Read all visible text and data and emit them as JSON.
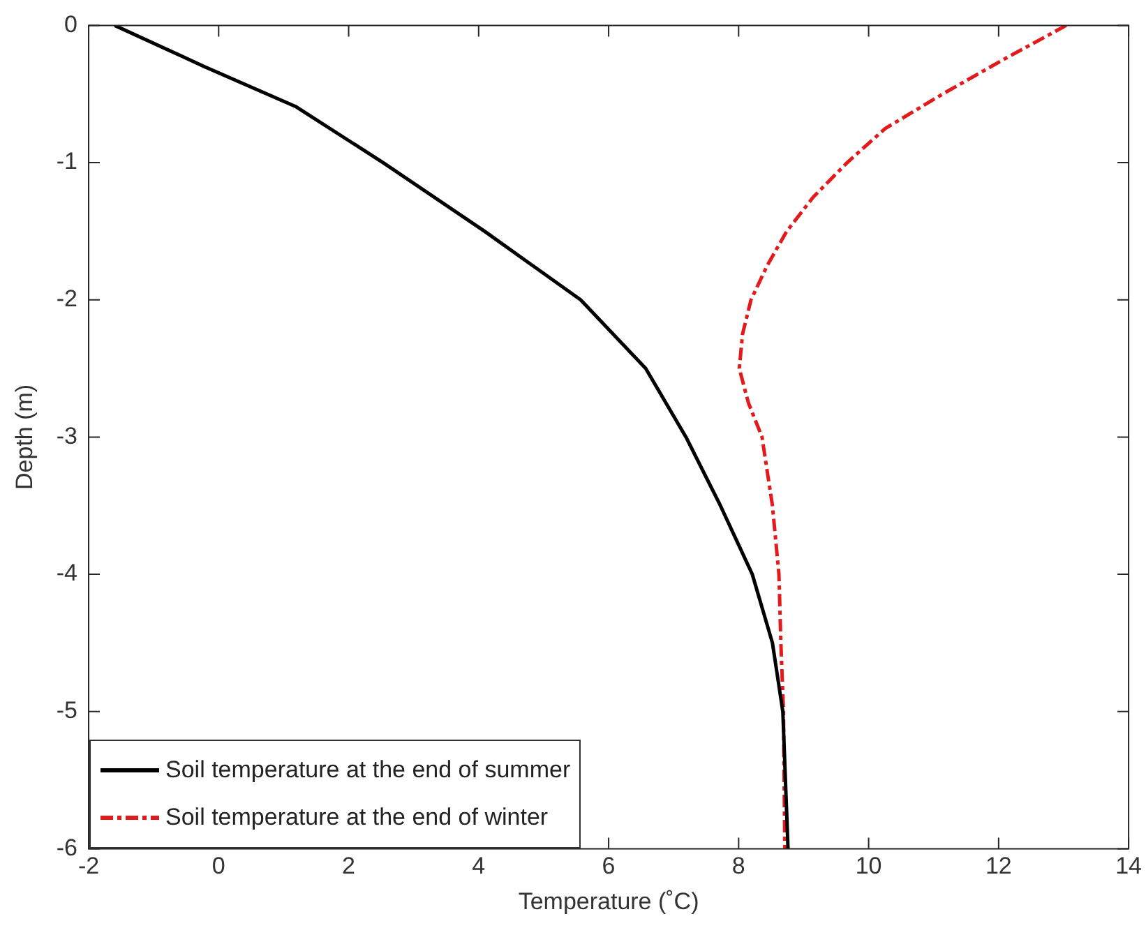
{
  "chart_data": {
    "type": "line",
    "xlabel": "Temperature (˚C)",
    "ylabel": "Depth (m)",
    "xlim": [
      -2,
      14
    ],
    "xticks": [
      -2,
      0,
      2,
      4,
      6,
      8,
      10,
      12,
      14
    ],
    "ylim": [
      -6,
      0
    ],
    "yticks": [
      -6,
      -5,
      -4,
      -3,
      -2,
      -1,
      0
    ],
    "grid": false,
    "legend": "bottom left",
    "marker": "none",
    "series": [
      {
        "name": "Soil temperature at the end of summer",
        "color": "#000000",
        "line_style": "solid",
        "x": [
          -1.6,
          -0.22,
          1.18,
          2.53,
          4.09,
          5.57,
          6.57,
          7.19,
          7.72,
          8.21,
          8.52,
          8.68,
          8.72,
          8.76
        ],
        "values": [
          0,
          -0.3,
          -0.59,
          -1,
          -1.5,
          -2,
          -2.5,
          -3,
          -3.5,
          -4,
          -4.5,
          -5,
          -5.5,
          -6
        ]
      },
      {
        "name": "Soil temperature at the end of winter",
        "color": "#e31a1c",
        "line_style": "dashed",
        "x": [
          13.04,
          12.07,
          11.14,
          10.26,
          9.67,
          9.15,
          8.74,
          8.44,
          8.19,
          8.06,
          8.01,
          8.15,
          8.36,
          8.44,
          8.52,
          8.62,
          8.65,
          8.69,
          8.71
        ],
        "values": [
          0,
          -0.25,
          -0.5,
          -0.75,
          -1,
          -1.25,
          -1.5,
          -1.75,
          -2,
          -2.25,
          -2.5,
          -2.75,
          -3,
          -3.25,
          -3.5,
          -4,
          -4.5,
          -5,
          -6
        ]
      }
    ]
  }
}
